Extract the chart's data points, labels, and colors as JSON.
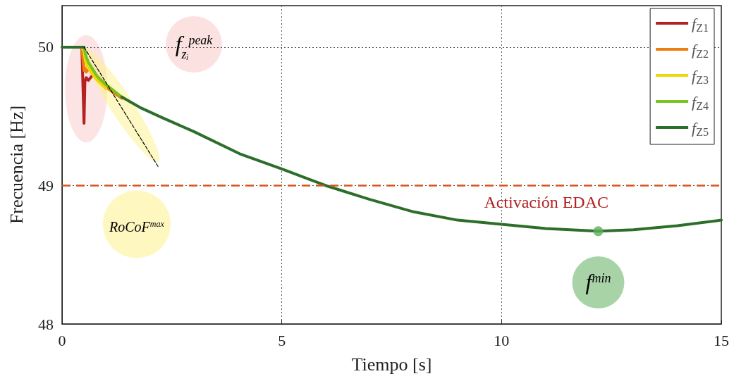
{
  "chart_data": {
    "type": "line",
    "xlabel": "Tiempo [s]",
    "ylabel": "Frecuencia [Hz]",
    "x": [
      0,
      0.45,
      0.5,
      0.52,
      0.55,
      0.6,
      0.7,
      0.8,
      1.0,
      1.36,
      1.8,
      2.28,
      3,
      4.04,
      5,
      6,
      7,
      8,
      9,
      10,
      11,
      12.2,
      13,
      14,
      15
    ],
    "series": [
      {
        "name": "f$_{Z1}$",
        "color": "#b22222",
        "values": [
          null,
          50,
          49.45,
          49.75,
          49.78,
          49.76,
          49.8,
          null,
          null,
          null,
          null,
          null,
          null,
          null,
          null,
          null,
          null,
          null,
          null,
          null,
          null,
          null,
          null,
          null,
          null
        ]
      },
      {
        "name": "f$_{Z2}$",
        "color": "#ed7d11",
        "values": [
          null,
          50,
          49.83,
          49.85,
          49.82,
          49.84,
          49.84,
          49.78,
          49.71,
          49.63,
          null,
          null,
          null,
          null,
          null,
          null,
          null,
          null,
          null,
          null,
          null,
          null,
          null,
          null,
          null
        ]
      },
      {
        "name": "f$_{Z3}$",
        "color": "#edd80a",
        "values": [
          null,
          50,
          49.97,
          49.92,
          49.88,
          49.85,
          49.8,
          49.76,
          49.7,
          null,
          null,
          null,
          null,
          null,
          null,
          null,
          null,
          null,
          null,
          null,
          null,
          null,
          null,
          null,
          null
        ]
      },
      {
        "name": "f$_{Z4}$",
        "color": "#77c41e",
        "values": [
          null,
          50,
          50,
          49.97,
          49.93,
          49.89,
          49.84,
          49.79,
          49.73,
          49.64,
          null,
          null,
          null,
          null,
          null,
          null,
          null,
          null,
          null,
          null,
          null,
          null,
          null,
          null,
          null
        ]
      },
      {
        "name": "f$_{Z5}$",
        "color": "#2d6e2a",
        "values": [
          50,
          50,
          50,
          null,
          null,
          null,
          null,
          null,
          null,
          49.64,
          49.56,
          49.49,
          49.39,
          49.23,
          49.12,
          49.0,
          48.9,
          48.81,
          48.75,
          48.72,
          48.69,
          48.67,
          48.68,
          48.71,
          48.75
        ]
      },
      {
        "type": "line",
        "color": "#000000",
        "line_style": "dashed",
        "x": [
          0.5,
          2.2
        ],
        "values": [
          50,
          49.13
        ]
      },
      {
        "type": "scatter",
        "color": "#5bb05b",
        "marker": "circle",
        "x": [
          12.2
        ],
        "values": [
          48.67
        ]
      }
    ],
    "annotations": [
      "f$_{zᵢ}$$^{peak}$",
      "RoCoF$^{max}$",
      "f$^{min}$"
    ],
    "ref_lines": [
      {
        "axis": "y",
        "value": 49,
        "label": "Activación EDAC",
        "color": "#d95319",
        "line_style": "dashed"
      }
    ],
    "xlim": [
      0,
      15
    ],
    "xticks": [
      0,
      5,
      10,
      15
    ],
    "ylim": [
      48,
      50.3
    ],
    "yticks": [
      48,
      49,
      50
    ],
    "grid": true,
    "legend": "top right",
    "marker": "none",
    "line_style": "solid"
  }
}
